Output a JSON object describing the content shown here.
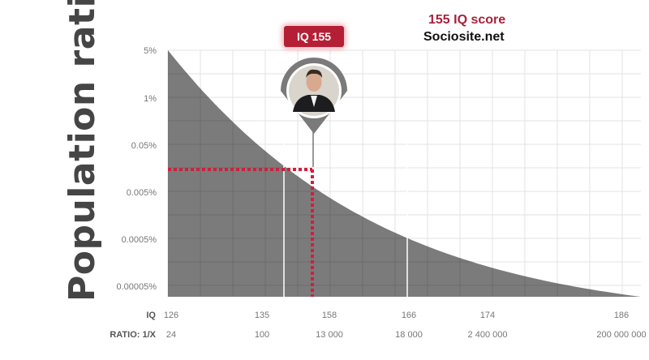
{
  "header": {
    "badge": "IQ 155",
    "score_title": "155 IQ score",
    "site": "Sociosite.net"
  },
  "chart_data": {
    "type": "area",
    "ylabel": "Population ratio",
    "y_scale": "log",
    "y_ticks": [
      "5%",
      "1%",
      "0.05%",
      "0.005%",
      "0.0005%",
      "0.00005%"
    ],
    "x_row_label": "IQ",
    "x_ticks": [
      "126",
      "135",
      "158",
      "166",
      "174",
      "186"
    ],
    "ratio_row_label": "RATIO: 1/X",
    "ratio_ticks": [
      "24",
      "100",
      "13 000",
      "18 000",
      "2 400 000",
      "200 000 000"
    ],
    "highlight": {
      "iq": 155,
      "label": "IQ 155"
    },
    "colors": {
      "area": "#7b7b7b",
      "highlight": "#d21e3c",
      "grid": "#e3e3e3"
    }
  }
}
